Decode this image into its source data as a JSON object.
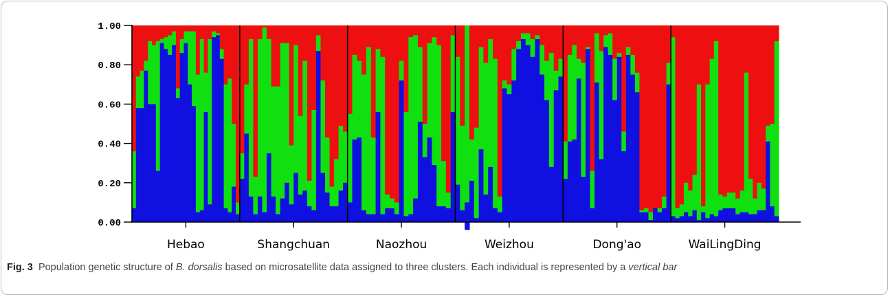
{
  "chart_data": {
    "type": "bar",
    "stacked": true,
    "ylim": [
      0,
      1
    ],
    "yticks": [
      "0.00",
      "0.20",
      "0.40",
      "0.60",
      "0.80",
      "1.00"
    ],
    "series_colors": {
      "blue": "#1010e0",
      "green": "#10e010",
      "red": "#ee1010"
    },
    "groups": [
      {
        "label": "Hebao",
        "bars": [
          [
            0.07,
            0.29
          ],
          [
            0.58,
            0.16
          ],
          [
            0.58,
            0.19
          ],
          [
            0.77,
            0.05
          ],
          [
            0.6,
            0.32
          ],
          [
            0.6,
            0.3
          ],
          [
            0.26,
            0.66
          ],
          [
            0.91,
            0.02
          ],
          [
            0.88,
            0.06
          ],
          [
            0.85,
            0.1
          ],
          [
            0.9,
            0.07
          ],
          [
            0.63,
            0.05
          ],
          [
            0.86,
            0.07
          ],
          [
            0.91,
            0.06
          ],
          [
            0.7,
            0.27
          ],
          [
            0.59,
            0.38
          ],
          [
            0.05,
            0.7
          ],
          [
            0.06,
            0.87
          ],
          [
            0.56,
            0.2
          ],
          [
            0.09,
            0.84
          ],
          [
            0.94,
            0.03
          ],
          [
            0.95,
            0.01
          ],
          [
            0.83,
            0.05
          ],
          [
            0.07,
            0.63
          ],
          [
            0.05,
            0.68
          ],
          [
            0.18,
            0.32
          ],
          [
            0.04,
            0.06
          ]
        ]
      },
      {
        "label": "Shangchuan",
        "bars": [
          [
            0.22,
            0.13
          ],
          [
            0.45,
            0.25
          ],
          [
            0.13,
            0.8
          ],
          [
            0.04,
            0.19
          ],
          [
            0.13,
            0.8
          ],
          [
            0.05,
            0.94
          ],
          [
            0.35,
            0.58
          ],
          [
            0.13,
            0.56
          ],
          [
            0.04,
            0.65
          ],
          [
            0.12,
            0.79
          ],
          [
            0.2,
            0.71
          ],
          [
            0.09,
            0.3
          ],
          [
            0.25,
            0.65
          ],
          [
            0.14,
            0.4
          ],
          [
            0.16,
            0.66
          ],
          [
            0.08,
            0.13
          ],
          [
            0.06,
            0.51
          ],
          [
            0.87,
            0.08
          ],
          [
            0.25,
            0.47
          ],
          [
            0.15,
            0.28
          ],
          [
            0.08,
            0.1
          ],
          [
            0.08,
            0.24
          ],
          [
            0.16,
            0.33
          ],
          [
            0.2,
            0.26
          ]
        ]
      },
      {
        "label": "Naozhou",
        "bars": [
          [
            0.1,
            0.45
          ],
          [
            0.42,
            0.43
          ],
          [
            0.43,
            0.39
          ],
          [
            0.06,
            0.69
          ],
          [
            0.04,
            0.85
          ],
          [
            0.04,
            0.39
          ],
          [
            0.56,
            0.32
          ],
          [
            0.04,
            0.8
          ],
          [
            0.07,
            0.07
          ],
          [
            0.07,
            0.05
          ],
          [
            0.04,
            0.06
          ],
          [
            0.72,
            0.1
          ],
          [
            0.03,
            0.53
          ],
          [
            0.04,
            0.9
          ],
          [
            0.12,
            0.83
          ],
          [
            0.51,
            0.38
          ],
          [
            0.33,
            0.17
          ],
          [
            0.43,
            0.48
          ],
          [
            0.29,
            0.65
          ],
          [
            0.08,
            0.82
          ],
          [
            0.08,
            0.23
          ],
          [
            0.07,
            0.08
          ],
          [
            0.56,
            0.39
          ]
        ]
      },
      {
        "label": "Weizhou",
        "bars": [
          [
            0.19,
            0.65
          ],
          [
            0.06,
            0.43
          ],
          [
            0.14,
            0.9
          ],
          [
            0.21,
            0.21
          ],
          [
            0.02,
            0.46
          ],
          [
            0.37,
            0.52
          ],
          [
            0.14,
            0.67
          ],
          [
            0.28,
            0.65
          ],
          [
            0.07,
            0.76
          ],
          [
            0.05,
            0.08
          ],
          [
            0.68,
            0.04
          ],
          [
            0.65,
            0.05
          ],
          [
            0.72,
            0.16
          ],
          [
            0.88,
            0.04
          ],
          [
            0.93,
            0.03
          ],
          [
            0.9,
            0.06
          ],
          [
            0.84,
            0.09
          ],
          [
            0.93,
            0.02
          ],
          [
            0.75,
            0.15
          ],
          [
            0.62,
            0.2
          ],
          [
            0.28,
            0.58
          ],
          [
            0.67,
            0.1
          ],
          [
            0.74,
            0.09
          ]
        ]
      },
      {
        "label": "Dong'ao",
        "bars": [
          [
            0.22,
            0.19
          ],
          [
            0.41,
            0.44
          ],
          [
            0.42,
            0.48
          ],
          [
            0.73,
            0.1
          ],
          [
            0.23,
            0.58
          ],
          [
            0.88,
            0.01
          ],
          [
            0.07,
            0.19
          ],
          [
            0.71,
            0.25
          ],
          [
            0.32,
            0.55
          ],
          [
            0.89,
            0.06
          ],
          [
            0.85,
            0.11
          ],
          [
            0.62,
            0.21
          ],
          [
            0.84,
            0.02
          ],
          [
            0.36,
            0.1
          ],
          [
            0.85,
            0.04
          ],
          [
            0.75,
            0.1
          ],
          [
            0.66,
            0.1
          ],
          [
            0.05,
            0.01
          ],
          [
            0.05,
            0.02
          ],
          [
            0.01,
            0.04
          ],
          [
            0.07,
            0.0
          ],
          [
            0.05,
            0.02
          ],
          [
            0.07,
            0.06
          ],
          [
            0.7,
            0.11
          ]
        ]
      },
      {
        "label": "WaiLingDing",
        "bars": [
          [
            0.03,
            0.91
          ],
          [
            0.02,
            0.05
          ],
          [
            0.03,
            0.06
          ],
          [
            0.05,
            0.15
          ],
          [
            0.03,
            0.13
          ],
          [
            0.06,
            0.18
          ],
          [
            0.01,
            0.69
          ],
          [
            0.05,
            0.03
          ],
          [
            0.02,
            0.68
          ],
          [
            0.04,
            0.79
          ],
          [
            0.03,
            0.89
          ],
          [
            0.06,
            0.08
          ],
          [
            0.07,
            0.06
          ],
          [
            0.07,
            0.08
          ],
          [
            0.07,
            0.08
          ],
          [
            0.04,
            0.08
          ],
          [
            0.05,
            0.11
          ],
          [
            0.05,
            0.71
          ],
          [
            0.04,
            0.18
          ],
          [
            0.04,
            0.08
          ],
          [
            0.06,
            0.14
          ],
          [
            0.06,
            0.11
          ],
          [
            0.41,
            0.08
          ],
          [
            0.08,
            0.42
          ],
          [
            0.03,
            0.89
          ]
        ]
      }
    ]
  },
  "caption": {
    "fig_label": "Fig. 3",
    "text_before_species": "Population genetic structure of ",
    "species": "B. dorsalis",
    "text_middle": " based on microsatellite data assigned to three clusters. Each individual is represented by a ",
    "emphasis": "vertical bar"
  }
}
